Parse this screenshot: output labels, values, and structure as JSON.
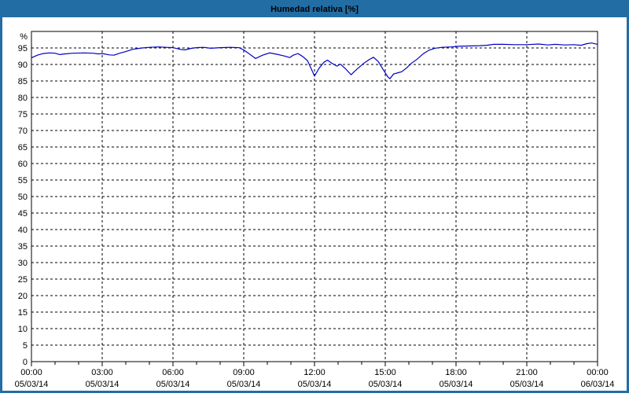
{
  "title": "Humedad relativa [%]",
  "colors": {
    "titlebar_bg": "#226DA4",
    "title_text": "#FFFFFF",
    "window_border": "#226DA4",
    "plot_bg": "#FFFFFF",
    "grid": "#000000",
    "frame": "#000000",
    "label": "#000000",
    "line": "#0000C8"
  },
  "chart_data": {
    "type": "line",
    "title": "Humedad relativa [%]",
    "ylabel": "%",
    "y_unit_label": "%",
    "ylim": [
      0,
      100
    ],
    "ylim_labeled": [
      0,
      95
    ],
    "y_tick_step": 5,
    "y_ticks": [
      0,
      5,
      10,
      15,
      20,
      25,
      30,
      35,
      40,
      45,
      50,
      55,
      60,
      65,
      70,
      75,
      80,
      85,
      90,
      95
    ],
    "grid": "dashed",
    "legend": "none",
    "x_axis_unit": "hours",
    "x_minor_tick_hours": 1,
    "x_ticks": [
      {
        "hour": 0,
        "time": "00:00",
        "date": "05/03/14"
      },
      {
        "hour": 3,
        "time": "03:00",
        "date": "05/03/14"
      },
      {
        "hour": 6,
        "time": "06:00",
        "date": "05/03/14"
      },
      {
        "hour": 9,
        "time": "09:00",
        "date": "05/03/14"
      },
      {
        "hour": 12,
        "time": "12:00",
        "date": "05/03/14"
      },
      {
        "hour": 15,
        "time": "15:00",
        "date": "05/03/14"
      },
      {
        "hour": 18,
        "time": "18:00",
        "date": "05/03/14"
      },
      {
        "hour": 21,
        "time": "21:00",
        "date": "05/03/14"
      },
      {
        "hour": 24,
        "time": "00:00",
        "date": "06/03/14"
      }
    ],
    "series": [
      {
        "name": "Humedad relativa",
        "color": "#0000C8",
        "points": [
          [
            0,
            92.0
          ],
          [
            0.25,
            92.8
          ],
          [
            0.5,
            93.3
          ],
          [
            0.75,
            93.5
          ],
          [
            1,
            93.4
          ],
          [
            1.2,
            93.0
          ],
          [
            1.4,
            93.2
          ],
          [
            1.75,
            93.4
          ],
          [
            2.25,
            93.5
          ],
          [
            2.6,
            93.4
          ],
          [
            2.85,
            93.2
          ],
          [
            3,
            93.3
          ],
          [
            3.3,
            92.9
          ],
          [
            3.5,
            92.8
          ],
          [
            3.7,
            93.3
          ],
          [
            4,
            93.9
          ],
          [
            4.3,
            94.6
          ],
          [
            4.7,
            95.0
          ],
          [
            5,
            95.2
          ],
          [
            5.4,
            95.3
          ],
          [
            5.7,
            95.2
          ],
          [
            6,
            95.1
          ],
          [
            6.3,
            94.6
          ],
          [
            6.5,
            94.4
          ],
          [
            6.8,
            94.9
          ],
          [
            7,
            95.1
          ],
          [
            7.3,
            95.2
          ],
          [
            7.6,
            94.9
          ],
          [
            8,
            95.1
          ],
          [
            8.4,
            95.2
          ],
          [
            8.8,
            95.1
          ],
          [
            9,
            94.4
          ],
          [
            9.2,
            93.4
          ],
          [
            9.5,
            91.8
          ],
          [
            9.8,
            92.8
          ],
          [
            10.1,
            93.5
          ],
          [
            10.4,
            93.1
          ],
          [
            10.7,
            92.6
          ],
          [
            10.95,
            92.1
          ],
          [
            11.1,
            92.8
          ],
          [
            11.3,
            93.3
          ],
          [
            11.5,
            92.4
          ],
          [
            11.7,
            91.2
          ],
          [
            11.85,
            88.9
          ],
          [
            12,
            86.5
          ],
          [
            12.2,
            88.9
          ],
          [
            12.4,
            90.7
          ],
          [
            12.55,
            91.3
          ],
          [
            12.75,
            90.3
          ],
          [
            12.95,
            89.5
          ],
          [
            13.1,
            90.1
          ],
          [
            13.3,
            88.8
          ],
          [
            13.55,
            86.9
          ],
          [
            13.8,
            88.6
          ],
          [
            14.1,
            90.4
          ],
          [
            14.3,
            91.4
          ],
          [
            14.5,
            92.2
          ],
          [
            14.7,
            90.9
          ],
          [
            14.9,
            88.6
          ],
          [
            15.1,
            86.3
          ],
          [
            15.2,
            85.7
          ],
          [
            15.35,
            87.1
          ],
          [
            15.55,
            87.5
          ],
          [
            15.7,
            87.8
          ],
          [
            15.9,
            88.9
          ],
          [
            16.1,
            90.3
          ],
          [
            16.35,
            91.6
          ],
          [
            16.6,
            93.2
          ],
          [
            16.85,
            94.3
          ],
          [
            17.1,
            94.9
          ],
          [
            17.4,
            95.2
          ],
          [
            17.8,
            95.3
          ],
          [
            18.1,
            95.5
          ],
          [
            18.5,
            95.6
          ],
          [
            19,
            95.7
          ],
          [
            19.3,
            95.8
          ],
          [
            19.6,
            96.1
          ],
          [
            20,
            96.1
          ],
          [
            20.5,
            96.0
          ],
          [
            21,
            96.0
          ],
          [
            21.5,
            96.2
          ],
          [
            21.9,
            95.9
          ],
          [
            22.2,
            96.1
          ],
          [
            22.6,
            95.9
          ],
          [
            23,
            96.0
          ],
          [
            23.3,
            95.8
          ],
          [
            23.55,
            96.3
          ],
          [
            23.75,
            96.5
          ],
          [
            24,
            96.1
          ]
        ]
      }
    ]
  }
}
